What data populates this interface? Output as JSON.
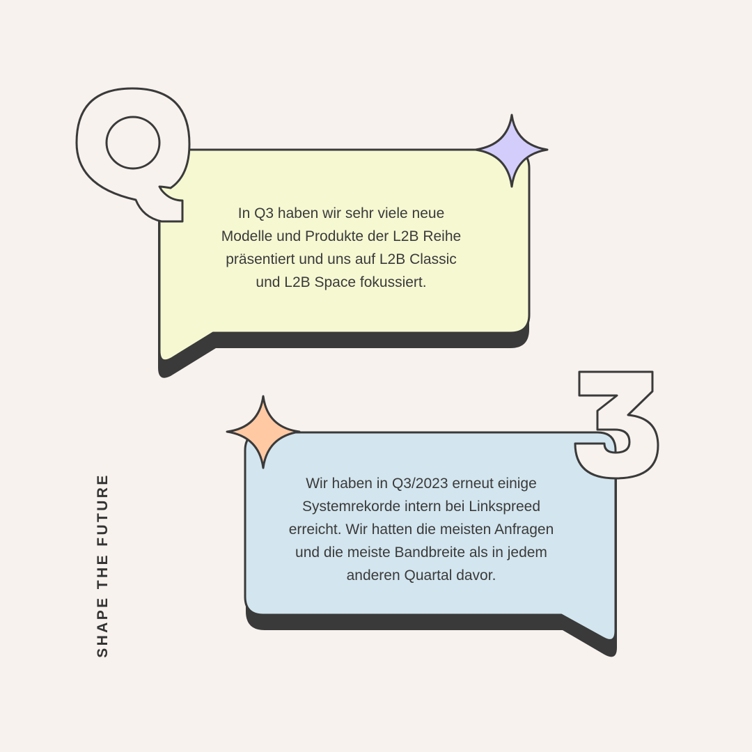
{
  "colors": {
    "background": "#f7f2ee",
    "outline": "#3a3a3a",
    "shadow": "#3a3a3a",
    "bubble_top_fill": "#f6f8d2",
    "bubble_bottom_fill": "#d3e5ee",
    "sparkle_top_fill": "#d2cdfb",
    "sparkle_bottom_fill": "#ffc9a3",
    "letter_fill": "#f7f2ee"
  },
  "decor": {
    "big_letter_top": "Q",
    "big_letter_bottom": "3",
    "sparkle_top_icon": "four-point-sparkle",
    "sparkle_bottom_icon": "four-point-sparkle"
  },
  "bubbles": {
    "top": {
      "lines": [
        "In Q3 haben wir sehr viele neue",
        "Modelle und Produkte der L2B Reihe",
        "präsentiert und uns auf L2B Classic",
        "und L2B Space fokussiert."
      ]
    },
    "bottom": {
      "lines": [
        "Wir haben in Q3/2023 erneut einige",
        "Systemrekorde intern bei Linkspreed",
        "erreicht. Wir hatten die meisten Anfragen",
        "und die meiste Bandbreite als in jedem",
        "anderen Quartal davor."
      ]
    }
  },
  "tagline": "SHAPE THE FUTURE"
}
